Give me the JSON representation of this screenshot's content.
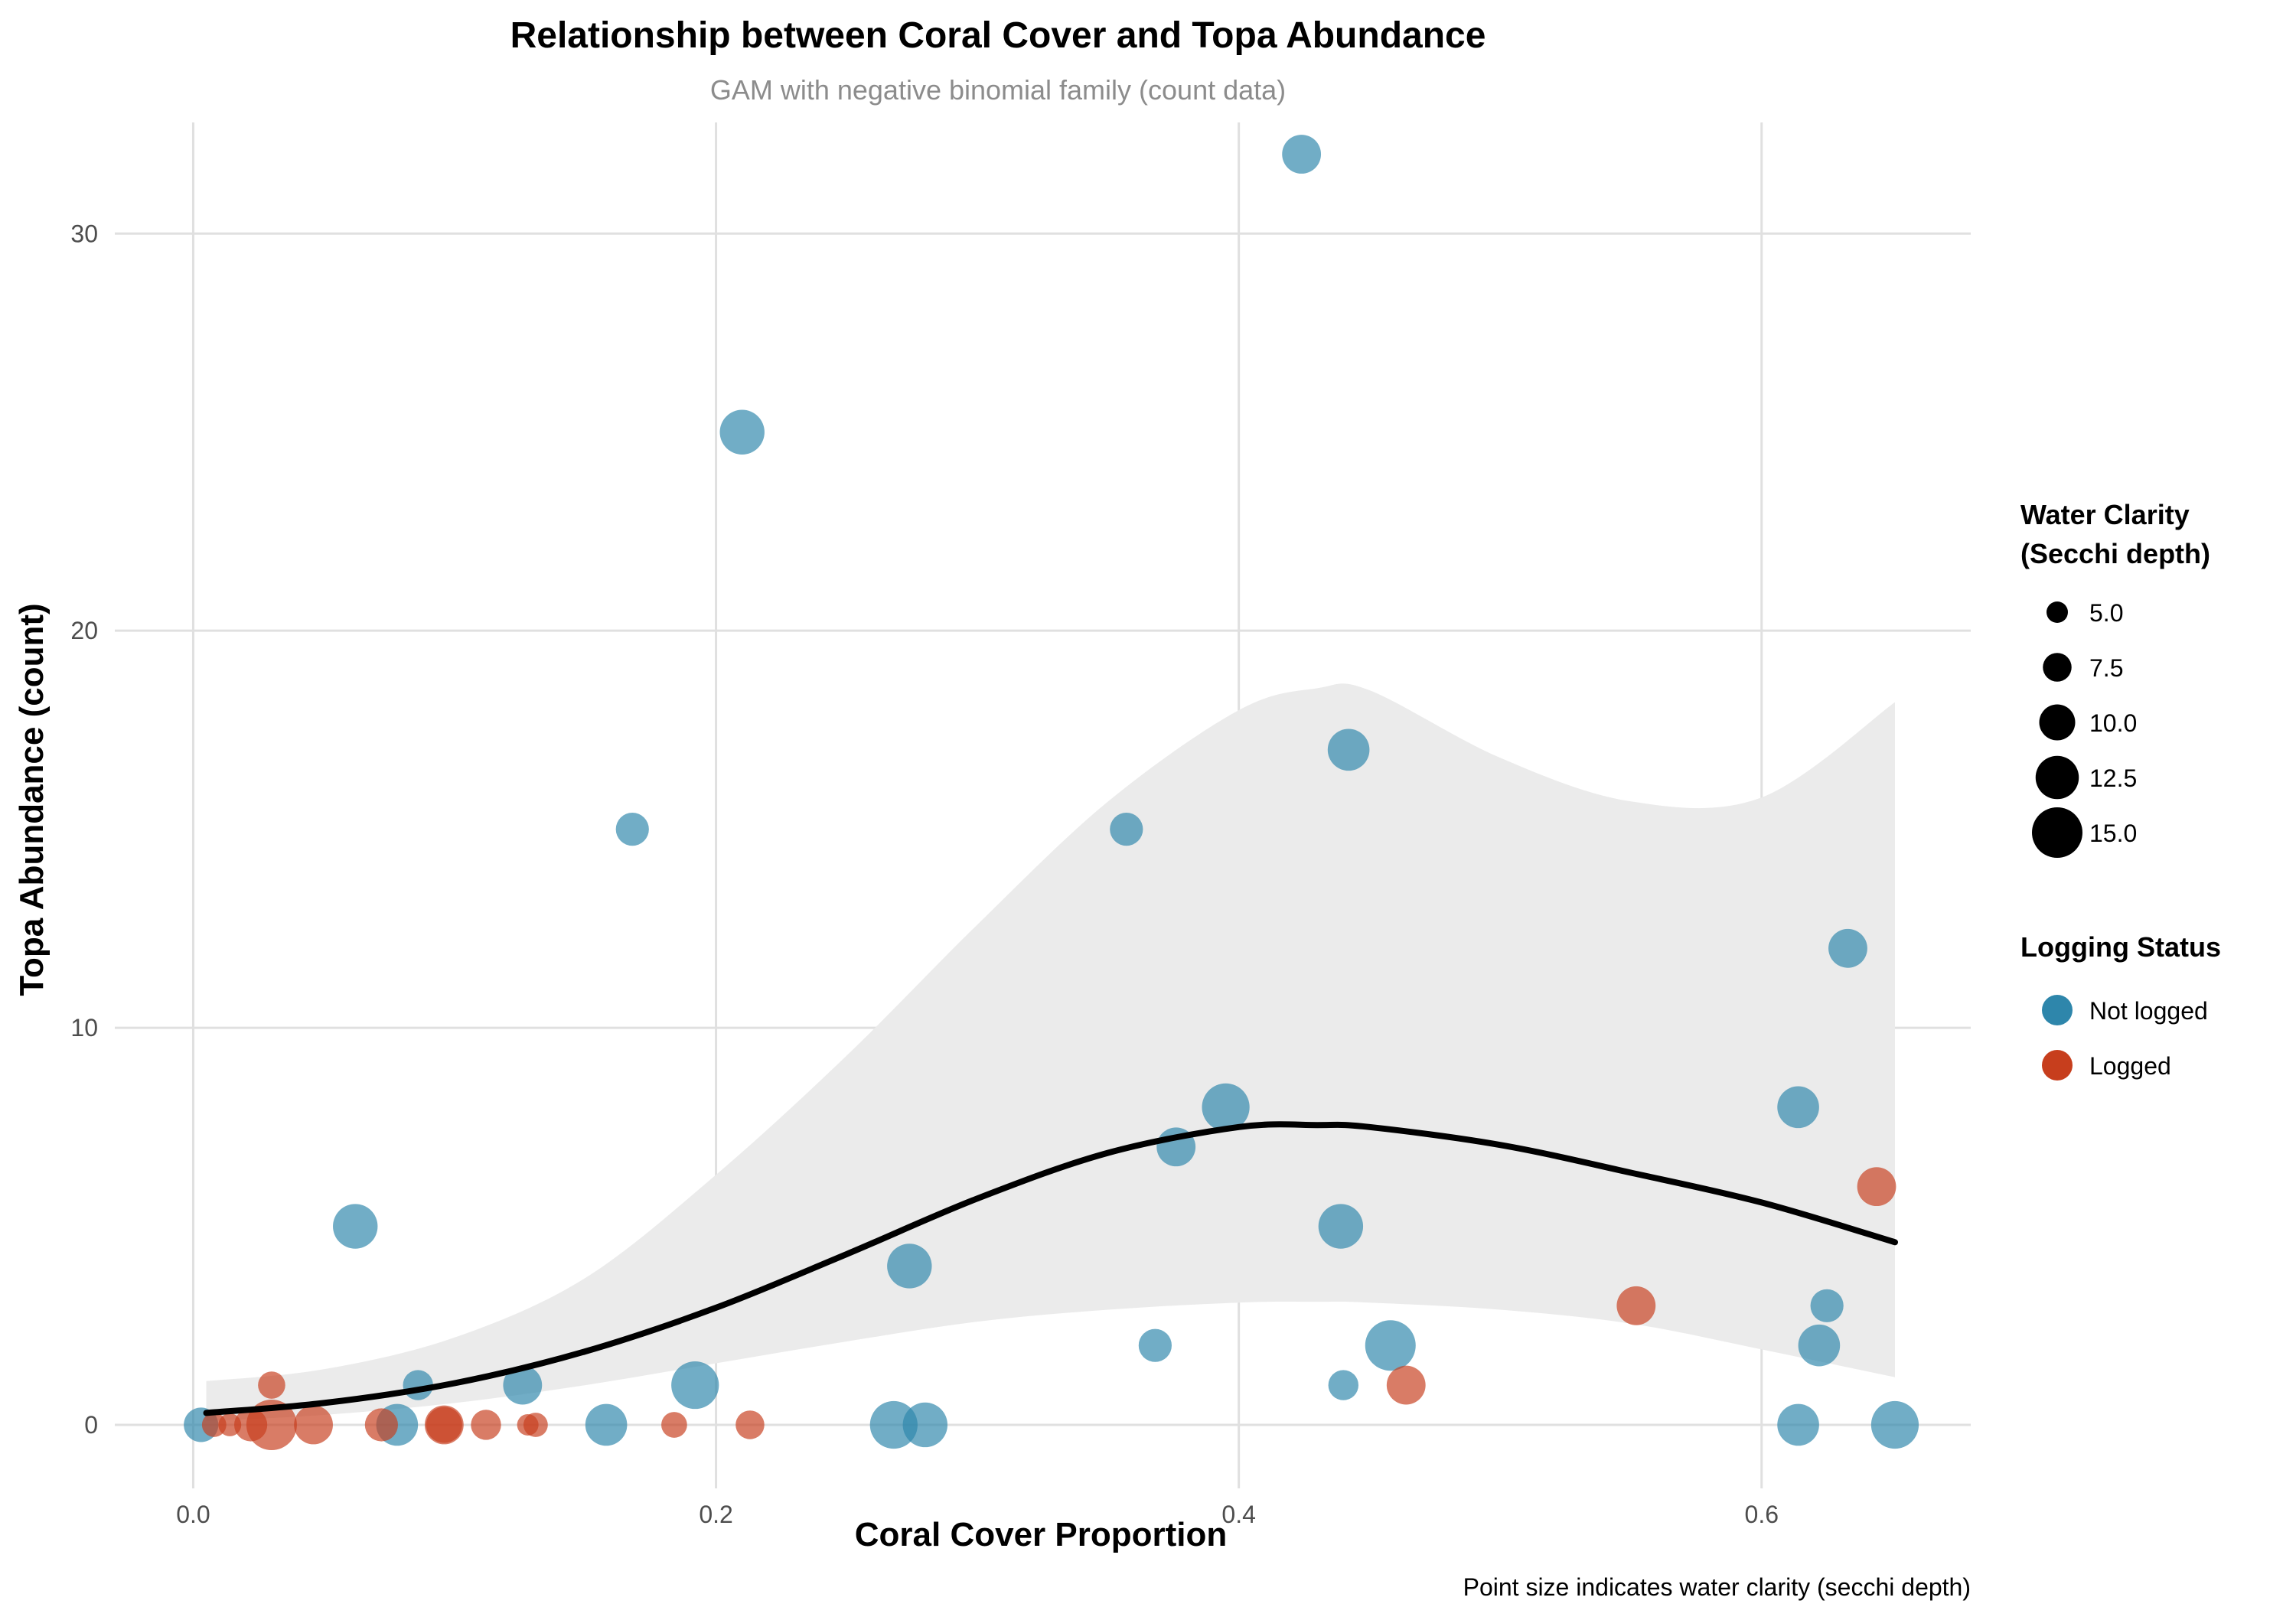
{
  "chart_data": {
    "type": "scatter",
    "title": "Relationship between Coral Cover and Topa Abundance",
    "subtitle": "GAM with negative binomial family (count data)",
    "xlabel": "Coral Cover Proportion",
    "ylabel": "Topa Abundance (count)",
    "caption": "Point size indicates water clarity (secchi depth)",
    "xlim": [
      -0.03,
      0.68
    ],
    "ylim": [
      -1.6,
      32.8
    ],
    "x_ticks": [
      0.0,
      0.2,
      0.4,
      0.6
    ],
    "x_tick_labels": [
      "0.0",
      "0.2",
      "0.4",
      "0.6"
    ],
    "y_ticks": [
      0,
      10,
      20,
      30
    ],
    "y_tick_labels": [
      "0",
      "10",
      "20",
      "30"
    ],
    "grid": true,
    "legend_placement": "right",
    "size_legend": {
      "title_lines": [
        "Water Clarity",
        "(Secchi depth)"
      ],
      "entries": [
        {
          "label": "5.0",
          "value": 5.0
        },
        {
          "label": "7.5",
          "value": 7.5
        },
        {
          "label": "10.0",
          "value": 10.0
        },
        {
          "label": "12.5",
          "value": 12.5
        },
        {
          "label": "15.0",
          "value": 15.0
        }
      ]
    },
    "color_legend": {
      "title": "Logging Status",
      "entries": [
        {
          "label": "Not logged",
          "color": "#2e86ab"
        },
        {
          "label": "Logged",
          "color": "#c73e1d"
        }
      ]
    },
    "colors": {
      "not_logged": "#2e86ab",
      "logged": "#c73e1d",
      "ribbon": "#ebebeb",
      "smooth": "#000000",
      "grid": "#e0e0e0"
    },
    "series": [
      {
        "name": "Not logged",
        "points": [
          {
            "x": 0.003,
            "y": 0,
            "secchi": 9.5
          },
          {
            "x": 0.062,
            "y": 5,
            "secchi": 13
          },
          {
            "x": 0.078,
            "y": 0,
            "secchi": 12
          },
          {
            "x": 0.086,
            "y": 1,
            "secchi": 8
          },
          {
            "x": 0.126,
            "y": 1,
            "secchi": 11
          },
          {
            "x": 0.158,
            "y": 0,
            "secchi": 12
          },
          {
            "x": 0.168,
            "y": 15,
            "secchi": 9
          },
          {
            "x": 0.192,
            "y": 1,
            "secchi": 14
          },
          {
            "x": 0.21,
            "y": 25,
            "secchi": 13
          },
          {
            "x": 0.268,
            "y": 0,
            "secchi": 14
          },
          {
            "x": 0.274,
            "y": 4,
            "secchi": 13
          },
          {
            "x": 0.28,
            "y": 0,
            "secchi": 13
          },
          {
            "x": 0.357,
            "y": 15,
            "secchi": 9
          },
          {
            "x": 0.368,
            "y": 2,
            "secchi": 9
          },
          {
            "x": 0.376,
            "y": 7,
            "secchi": 11
          },
          {
            "x": 0.395,
            "y": 8,
            "secchi": 14
          },
          {
            "x": 0.424,
            "y": 32,
            "secchi": 11
          },
          {
            "x": 0.439,
            "y": 5,
            "secchi": 13
          },
          {
            "x": 0.44,
            "y": 1,
            "secchi": 8
          },
          {
            "x": 0.442,
            "y": 17,
            "secchi": 12
          },
          {
            "x": 0.458,
            "y": 2,
            "secchi": 15
          },
          {
            "x": 0.614,
            "y": 8,
            "secchi": 12
          },
          {
            "x": 0.614,
            "y": 0,
            "secchi": 12
          },
          {
            "x": 0.622,
            "y": 2,
            "secchi": 12
          },
          {
            "x": 0.625,
            "y": 3,
            "secchi": 9
          },
          {
            "x": 0.633,
            "y": 12,
            "secchi": 11
          },
          {
            "x": 0.651,
            "y": 0,
            "secchi": 14
          }
        ]
      },
      {
        "name": "Logged",
        "points": [
          {
            "x": 0.008,
            "y": 0,
            "secchi": 6
          },
          {
            "x": 0.014,
            "y": 0,
            "secchi": 5.5
          },
          {
            "x": 0.022,
            "y": 0,
            "secchi": 9
          },
          {
            "x": 0.03,
            "y": 1,
            "secchi": 7
          },
          {
            "x": 0.03,
            "y": 0,
            "secchi": 15
          },
          {
            "x": 0.046,
            "y": 0,
            "secchi": 11
          },
          {
            "x": 0.072,
            "y": 0,
            "secchi": 9
          },
          {
            "x": 0.096,
            "y": 0,
            "secchi": 11
          },
          {
            "x": 0.096,
            "y": 0,
            "secchi": 10
          },
          {
            "x": 0.112,
            "y": 0,
            "secchi": 8
          },
          {
            "x": 0.128,
            "y": 0,
            "secchi": 5
          },
          {
            "x": 0.131,
            "y": 0,
            "secchi": 6
          },
          {
            "x": 0.184,
            "y": 0,
            "secchi": 6.5
          },
          {
            "x": 0.213,
            "y": 0,
            "secchi": 7.5
          },
          {
            "x": 0.464,
            "y": 1,
            "secchi": 11
          },
          {
            "x": 0.552,
            "y": 3,
            "secchi": 11
          },
          {
            "x": 0.644,
            "y": 6,
            "secchi": 11
          }
        ]
      }
    ],
    "smooth": {
      "x": [
        0.005,
        0.05,
        0.1,
        0.15,
        0.2,
        0.25,
        0.3,
        0.35,
        0.4,
        0.43,
        0.45,
        0.5,
        0.55,
        0.6,
        0.651
      ],
      "y": [
        0.3,
        0.55,
        1.05,
        1.85,
        2.95,
        4.3,
        5.7,
        6.85,
        7.5,
        7.55,
        7.5,
        7.05,
        6.35,
        5.6,
        4.6
      ],
      "lower": [
        0.1,
        0.25,
        0.55,
        1.0,
        1.55,
        2.1,
        2.6,
        2.9,
        3.08,
        3.1,
        3.08,
        2.9,
        2.55,
        1.9,
        1.2
      ],
      "upper": [
        1.1,
        1.4,
        2.2,
        3.7,
        6.3,
        9.3,
        12.6,
        15.7,
        18.0,
        18.55,
        18.5,
        16.8,
        15.7,
        15.8,
        18.2
      ]
    }
  }
}
